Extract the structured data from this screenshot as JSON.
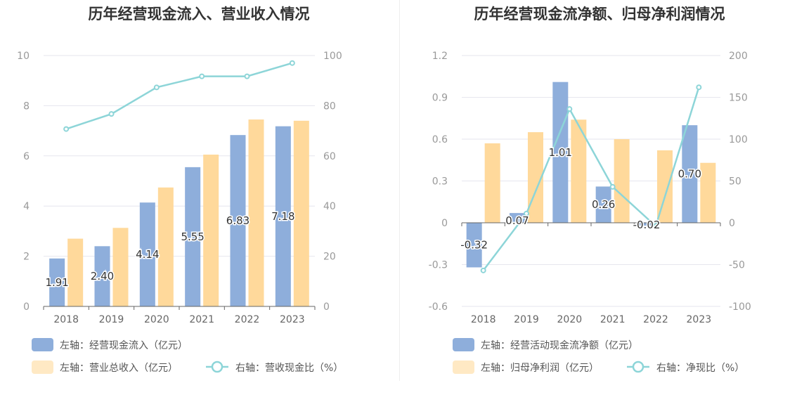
{
  "chart_data": [
    {
      "type": "bar",
      "title": "历年经营现金流入、营业收入情况",
      "categories": [
        "2018",
        "2019",
        "2020",
        "2021",
        "2022",
        "2023"
      ],
      "left_axis": {
        "ylim": [
          0,
          10
        ],
        "ticks": [
          0,
          2,
          4,
          6,
          8,
          10
        ]
      },
      "right_axis": {
        "ylim": [
          0,
          100
        ],
        "ticks": [
          0,
          20,
          40,
          60,
          80,
          100
        ]
      },
      "series": [
        {
          "name": "左轴：经营现金流入（亿元）",
          "type": "bar",
          "axis": "left",
          "color": "#8eaedb",
          "values": [
            1.91,
            2.4,
            4.14,
            5.55,
            6.83,
            7.18
          ],
          "labels": [
            "1.91",
            "2.40",
            "4.14",
            "5.55",
            "6.83",
            "7.18"
          ]
        },
        {
          "name": "左轴：营业总收入（亿元）",
          "type": "bar",
          "axis": "left",
          "color": "#ffd99b",
          "values": [
            2.7,
            3.13,
            4.74,
            6.05,
            7.45,
            7.4
          ]
        },
        {
          "name": "右轴：营收现金比（%）",
          "type": "line",
          "axis": "right",
          "color": "#8dd5d8",
          "values": [
            70.7,
            76.7,
            87.3,
            91.7,
            91.7,
            97.0
          ]
        }
      ],
      "legend_position": "bottom-left",
      "grid": true
    },
    {
      "type": "bar",
      "title": "历年经营现金流净额、归母净利润情况",
      "categories": [
        "2018",
        "2019",
        "2020",
        "2021",
        "2022",
        "2023"
      ],
      "left_axis": {
        "ylim": [
          -0.6,
          1.2
        ],
        "ticks": [
          -0.6,
          -0.3,
          0,
          0.3,
          0.6,
          0.9,
          1.2
        ],
        "tick_labels": [
          "-0.6",
          "-0.3",
          "0",
          "0.3",
          "0.6",
          "0.9",
          "1.2"
        ]
      },
      "right_axis": {
        "ylim": [
          -100,
          200
        ],
        "ticks": [
          -100,
          -50,
          0,
          50,
          100,
          150,
          200
        ]
      },
      "series": [
        {
          "name": "左轴：经营活动现金流净额（亿元）",
          "type": "bar",
          "axis": "left",
          "color": "#8eaedb",
          "values": [
            -0.32,
            0.07,
            1.01,
            0.26,
            -0.02,
            0.7
          ],
          "labels": [
            "-0.32",
            "0.07",
            "1.01",
            "0.26",
            "-0.02",
            "0.70"
          ]
        },
        {
          "name": "左轴：归母净利润（亿元）",
          "type": "bar",
          "axis": "left",
          "color": "#ffd99b",
          "values": [
            0.57,
            0.65,
            0.74,
            0.6,
            0.52,
            0.43
          ]
        },
        {
          "name": "右轴：净现比（%）",
          "type": "line",
          "axis": "right",
          "color": "#8dd5d8",
          "values": [
            -57,
            11,
            136,
            43,
            -4,
            162
          ]
        }
      ],
      "legend_position": "bottom-left",
      "grid": true
    }
  ]
}
